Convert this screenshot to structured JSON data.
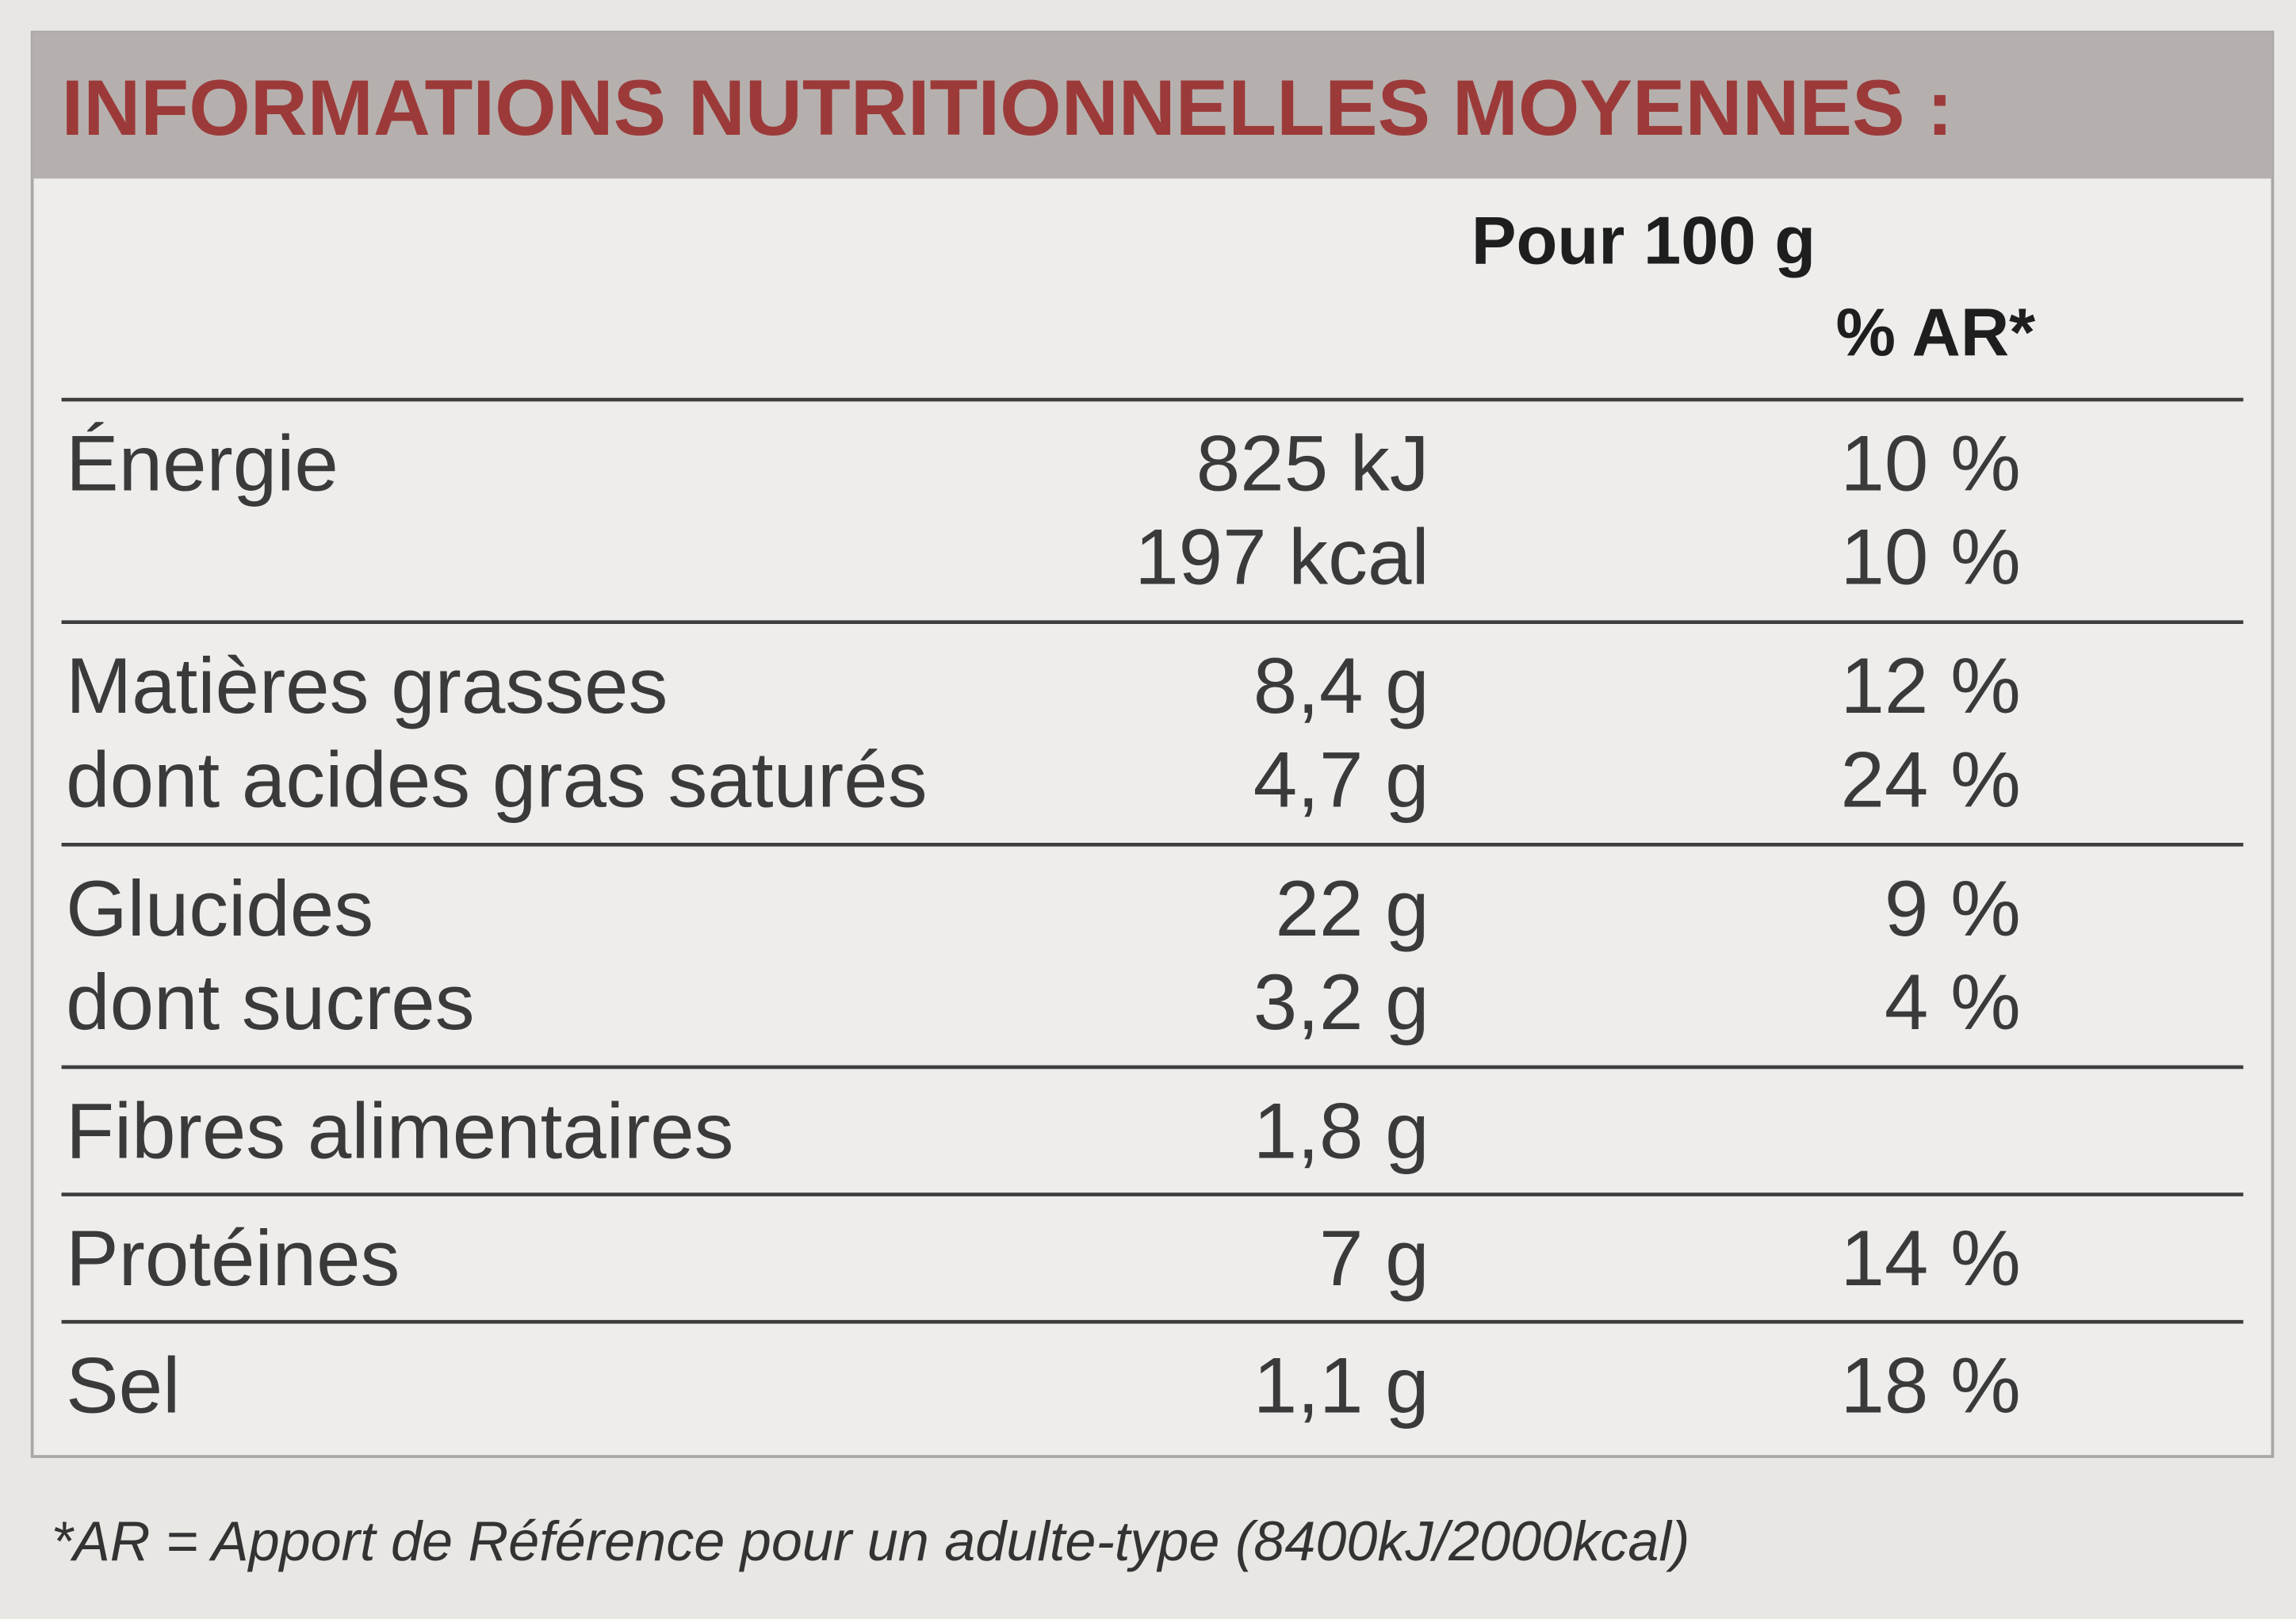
{
  "title": "INFORMATIONS NUTRITIONNELLES MOYENNES :",
  "header": {
    "per100": "Pour 100 g",
    "ar": "% AR*"
  },
  "groups": [
    {
      "rows": [
        {
          "label": "Énergie",
          "amount": "825 kJ",
          "ar": "10 %"
        },
        {
          "amount": "197 kcal",
          "ar": "10 %"
        }
      ]
    },
    {
      "rows": [
        {
          "label": "Matières grasses",
          "amount": "8,4 g",
          "ar": "12 %"
        },
        {
          "label": "dont acides gras saturés",
          "amount": "4,7 g",
          "ar": "24 %"
        }
      ]
    },
    {
      "rows": [
        {
          "label": "Glucides",
          "amount": "22 g",
          "ar": "9 %"
        },
        {
          "label": "dont sucres",
          "amount": "3,2 g",
          "ar": "4 %"
        }
      ]
    },
    {
      "rows": [
        {
          "label": "Fibres alimentaires",
          "amount": "1,8 g"
        }
      ]
    },
    {
      "rows": [
        {
          "label": "Protéines",
          "amount": "7 g",
          "ar": "14 %"
        }
      ]
    },
    {
      "rows": [
        {
          "label": "Sel",
          "amount": "1,1 g",
          "ar": "18 %"
        }
      ]
    }
  ],
  "footnote": "*AR = Apport de Référence pour un adulte-type (8400kJ/2000kcal)"
}
